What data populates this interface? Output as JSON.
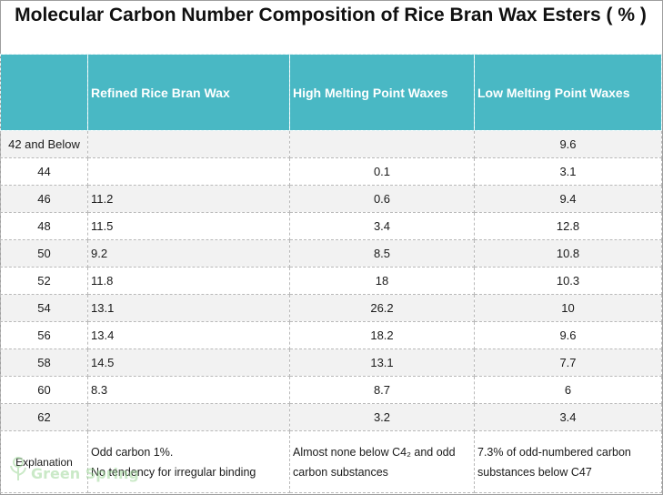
{
  "title": "Molecular Carbon Number Composition of Rice Bran Wax Esters ( % )",
  "headers": [
    "",
    "Refined Rice Bran Wax",
    "High Melting Point Waxes",
    "Low Melting Point Waxes"
  ],
  "rows": [
    [
      "42 and Below",
      "",
      "",
      "9.6"
    ],
    [
      "44",
      "",
      "0.1",
      "3.1"
    ],
    [
      "46",
      "11.2",
      "0.6",
      "9.4"
    ],
    [
      "48",
      "11.5",
      "3.4",
      "12.8"
    ],
    [
      "50",
      "9.2",
      "8.5",
      "10.8"
    ],
    [
      "52",
      "11.8",
      "18",
      "10.3"
    ],
    [
      "54",
      "13.1",
      "26.2",
      "10"
    ],
    [
      "56",
      "13.4",
      "18.2",
      "9.6"
    ],
    [
      "58",
      "14.5",
      "13.1",
      "7.7"
    ],
    [
      "60",
      "8.3",
      "8.7",
      "6"
    ],
    [
      "62",
      "",
      "3.2",
      "3.4"
    ]
  ],
  "explanation": {
    "label": "Explanation",
    "refined": "Odd carbon 1%.\nNo tendency for irregular binding",
    "high": "Almost none below C4₂ and odd carbon substances",
    "low": "7.3% of odd-numbered carbon substances below C47"
  },
  "watermark": "Green Spring",
  "colors": {
    "header_bg": "#49b8c4",
    "header_text": "#ffffff",
    "stripe": "#f2f2f2",
    "watermark": "#9fd89a"
  }
}
